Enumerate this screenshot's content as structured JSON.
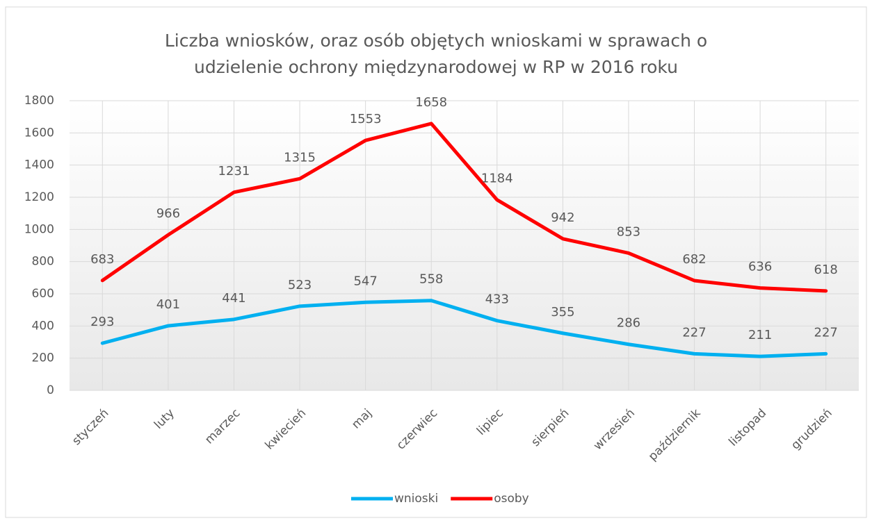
{
  "chart_data": {
    "type": "line",
    "title": [
      "Liczba wniosków,  oraz osób objętych  wnioskami   w sprawach o",
      "udzielenie  ochrony międzynarodowej  w RP w 2016 roku"
    ],
    "categories": [
      "styczeń",
      "luty",
      "marzec",
      "kwiecień",
      "maj",
      "czerwiec",
      "lipiec",
      "sierpień",
      "wrzesień",
      "październik",
      "listopad",
      "grudzień"
    ],
    "series": [
      {
        "name": "wnioski",
        "color": "#00b0f0",
        "values": [
          293,
          401,
          441,
          523,
          547,
          558,
          433,
          355,
          286,
          227,
          211,
          227
        ]
      },
      {
        "name": "osoby",
        "color": "#ff0000",
        "values": [
          683,
          966,
          1231,
          1315,
          1553,
          1658,
          1184,
          942,
          853,
          682,
          636,
          618
        ]
      }
    ],
    "ylim": [
      0,
      1800
    ],
    "yticks": [
      0,
      200,
      400,
      600,
      800,
      1000,
      1200,
      1400,
      1600,
      1800
    ],
    "grid": true,
    "legend": "bottom"
  }
}
